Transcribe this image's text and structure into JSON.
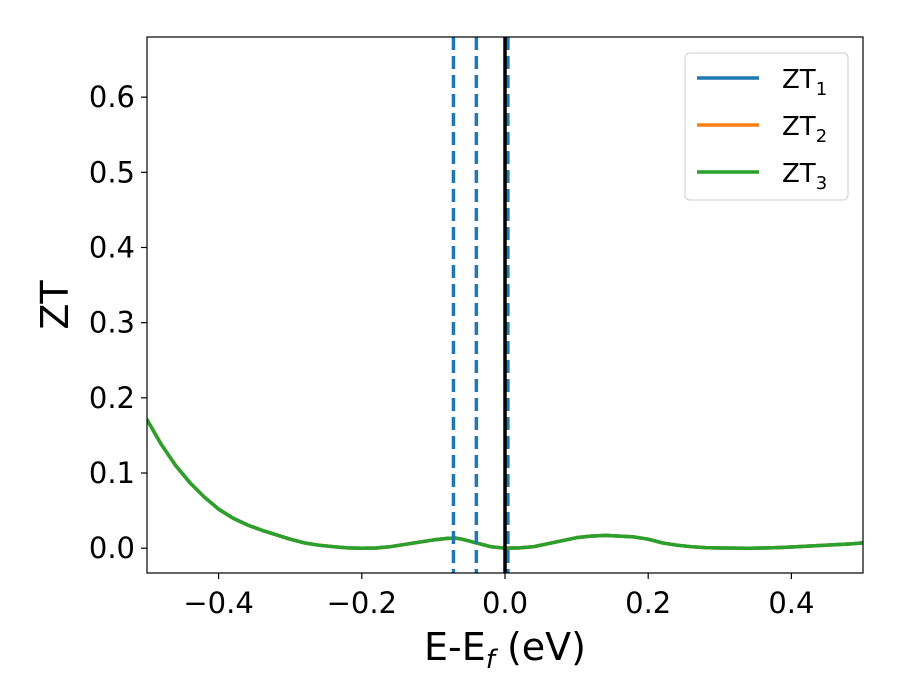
{
  "chart_data": {
    "type": "line",
    "xlabel": "E-E",
    "xlabel_sub": "f",
    "xlabel_unit": " (eV)",
    "ylabel": "ZT",
    "xlim": [
      -0.5,
      0.5
    ],
    "ylim": [
      -0.033,
      0.68
    ],
    "xticks": [
      -0.4,
      -0.2,
      0.0,
      0.2,
      0.4
    ],
    "xtick_labels": [
      "−0.4",
      "−0.2",
      "0.0",
      "0.2",
      "0.4"
    ],
    "yticks": [
      0.0,
      0.1,
      0.2,
      0.3,
      0.4,
      0.5,
      0.6
    ],
    "ytick_labels": [
      "0.0",
      "0.1",
      "0.2",
      "0.3",
      "0.4",
      "0.5",
      "0.6"
    ],
    "grid": false,
    "legend_position": "top-right",
    "x": [
      -0.5,
      -0.48,
      -0.46,
      -0.44,
      -0.42,
      -0.4,
      -0.38,
      -0.36,
      -0.34,
      -0.32,
      -0.3,
      -0.28,
      -0.26,
      -0.24,
      -0.22,
      -0.2,
      -0.18,
      -0.16,
      -0.14,
      -0.12,
      -0.1,
      -0.08,
      -0.07,
      -0.06,
      -0.04,
      -0.02,
      0.0,
      0.02,
      0.04,
      0.06,
      0.08,
      0.1,
      0.12,
      0.14,
      0.16,
      0.18,
      0.2,
      0.22,
      0.24,
      0.26,
      0.28,
      0.3,
      0.32,
      0.34,
      0.36,
      0.38,
      0.4,
      0.42,
      0.44,
      0.46,
      0.48,
      0.5
    ],
    "series": [
      {
        "name": "ZT",
        "name_sub": "1",
        "color": "#1f77b4",
        "values": [
          0.171,
          0.138,
          0.11,
          0.087,
          0.068,
          0.052,
          0.04,
          0.031,
          0.024,
          0.018,
          0.012,
          0.007,
          0.004,
          0.002,
          0.0005,
          0.0,
          0.0003,
          0.002,
          0.005,
          0.008,
          0.011,
          0.013,
          0.0135,
          0.012,
          0.007,
          0.002,
          0.0,
          0.0005,
          0.002,
          0.006,
          0.01,
          0.014,
          0.016,
          0.017,
          0.016,
          0.015,
          0.012,
          0.007,
          0.004,
          0.002,
          0.0008,
          0.0003,
          0.0001,
          0.0,
          0.0003,
          0.0008,
          0.0015,
          0.0025,
          0.0035,
          0.0045,
          0.0055,
          0.007
        ]
      },
      {
        "name": "ZT",
        "name_sub": "2",
        "color": "#ff7f0e",
        "values": [
          0.171,
          0.138,
          0.11,
          0.087,
          0.068,
          0.052,
          0.04,
          0.031,
          0.024,
          0.018,
          0.012,
          0.007,
          0.004,
          0.002,
          0.0005,
          0.0,
          0.0003,
          0.002,
          0.005,
          0.008,
          0.011,
          0.013,
          0.0135,
          0.012,
          0.007,
          0.002,
          0.0,
          0.0005,
          0.002,
          0.006,
          0.01,
          0.014,
          0.016,
          0.017,
          0.016,
          0.015,
          0.012,
          0.007,
          0.004,
          0.002,
          0.0008,
          0.0003,
          0.0001,
          0.0,
          0.0003,
          0.0008,
          0.0015,
          0.0025,
          0.0035,
          0.0045,
          0.0055,
          0.007
        ]
      },
      {
        "name": "ZT",
        "name_sub": "3",
        "color": "#2ca02c",
        "values": [
          0.171,
          0.138,
          0.11,
          0.087,
          0.068,
          0.052,
          0.04,
          0.031,
          0.024,
          0.018,
          0.012,
          0.007,
          0.004,
          0.002,
          0.0005,
          0.0,
          0.0003,
          0.002,
          0.005,
          0.008,
          0.011,
          0.013,
          0.0135,
          0.012,
          0.007,
          0.002,
          0.0,
          0.0005,
          0.002,
          0.006,
          0.01,
          0.014,
          0.016,
          0.017,
          0.016,
          0.015,
          0.012,
          0.007,
          0.004,
          0.002,
          0.0008,
          0.0003,
          0.0001,
          0.0,
          0.0003,
          0.0008,
          0.0015,
          0.0025,
          0.0035,
          0.0045,
          0.0055,
          0.007
        ]
      }
    ],
    "vlines": [
      {
        "x": -0.072,
        "style": "dashed",
        "color": "#1f77b4"
      },
      {
        "x": -0.04,
        "style": "dashed",
        "color": "#1f77b4"
      },
      {
        "x": 0.004,
        "style": "dashed",
        "color": "#1f77b4"
      },
      {
        "x": 0.0,
        "style": "solid",
        "color": "#000000"
      }
    ]
  }
}
